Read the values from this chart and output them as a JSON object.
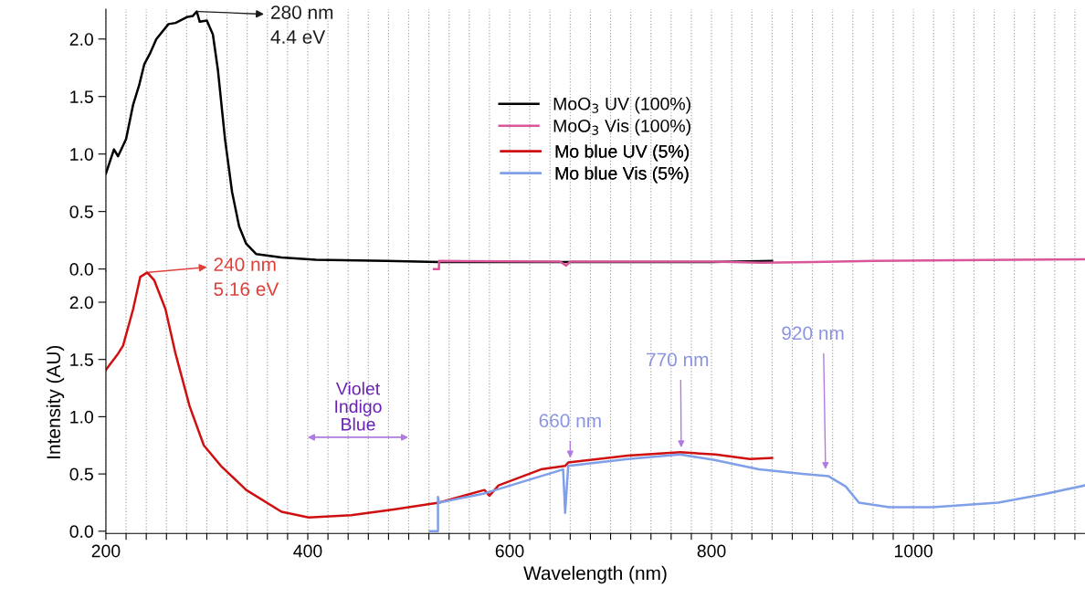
{
  "chart_data": [
    {
      "type": "line",
      "xlim": [
        200,
        1170
      ],
      "ylim": [
        -0.02,
        2.26
      ],
      "xticks": [
        200,
        {
          "value": 220,
          "label": null
        },
        {
          "value": 240,
          "label": null
        },
        {
          "value": 260,
          "label": null
        },
        {
          "value": 280,
          "label": null
        },
        {
          "value": 300,
          "label": null
        },
        {
          "value": 320,
          "label": null
        },
        {
          "value": 340,
          "label": null
        },
        {
          "value": 360,
          "label": null
        },
        {
          "value": 380,
          "label": null
        },
        400,
        {
          "value": 420,
          "label": null
        },
        {
          "value": 440,
          "label": null
        },
        {
          "value": 460,
          "label": null
        },
        {
          "value": 480,
          "label": null
        },
        {
          "value": 500,
          "label": null
        },
        {
          "value": 520,
          "label": null
        },
        {
          "value": 540,
          "label": null
        },
        {
          "value": 560,
          "label": null
        },
        {
          "value": 580,
          "label": null
        },
        600,
        {
          "value": 620,
          "label": null
        },
        {
          "value": 640,
          "label": null
        },
        {
          "value": 660,
          "label": null
        },
        {
          "value": 680,
          "label": null
        },
        {
          "value": 700,
          "label": null
        },
        {
          "value": 720,
          "label": null
        },
        {
          "value": 740,
          "label": null
        },
        {
          "value": 760,
          "label": null
        },
        {
          "value": 780,
          "label": null
        },
        800,
        {
          "value": 820,
          "label": null
        },
        {
          "value": 840,
          "label": null
        },
        {
          "value": 860,
          "label": null
        },
        {
          "value": 880,
          "label": null
        },
        {
          "value": 900,
          "label": null
        },
        {
          "value": 920,
          "label": null
        },
        {
          "value": 940,
          "label": null
        },
        {
          "value": 960,
          "label": null
        },
        {
          "value": 980,
          "label": null
        },
        1000,
        {
          "value": 1020,
          "label": null
        },
        {
          "value": 1040,
          "label": null
        },
        {
          "value": 1060,
          "label": null
        },
        {
          "value": 1080,
          "label": null
        },
        {
          "value": 1100,
          "label": null
        },
        {
          "value": 1120,
          "label": null
        },
        {
          "value": 1140,
          "label": null
        },
        {
          "value": 1160,
          "label": null
        }
      ],
      "yticks": [
        {
          "value": 0,
          "label": "0.0"
        },
        {
          "value": 0.5,
          "label": "0.5"
        },
        {
          "value": 1,
          "label": "1.0"
        },
        {
          "value": 1.5,
          "label": "1.5"
        },
        {
          "value": 2,
          "label": "2.0"
        }
      ],
      "tick_labels": "y",
      "grid": "x",
      "legend": "center",
      "series": [
        {
          "name": "MoO$_{3}$ UV (100%)",
          "color": "#000000",
          "x": [
            200,
            208,
            212,
            220,
            227,
            233,
            238,
            244,
            250,
            262,
            269,
            280,
            286,
            290,
            293,
            300,
            306,
            311,
            318,
            325,
            332,
            339,
            349,
            374,
            408,
            478,
            530,
            600,
            700,
            800,
            860
          ],
          "values": [
            0.83,
            1.04,
            0.98,
            1.13,
            1.43,
            1.6,
            1.78,
            1.88,
            2.0,
            2.13,
            2.14,
            2.19,
            2.2,
            2.24,
            2.15,
            2.16,
            2.04,
            1.73,
            1.13,
            0.67,
            0.37,
            0.22,
            0.13,
            0.1,
            0.08,
            0.07,
            0.06,
            0.06,
            0.06,
            0.06,
            0.07
          ]
        },
        {
          "name": "MoO$_{3}$ Vis (100%)",
          "color": "#d9569a",
          "x": [
            525,
            530,
            530,
            650,
            656,
            660,
            800,
            850,
            900,
            960,
            1100,
            1170
          ],
          "values": [
            0.0,
            0.0,
            0.07,
            0.065,
            0.03,
            0.065,
            0.065,
            0.055,
            0.06,
            0.07,
            0.08,
            0.085
          ]
        }
      ],
      "annotations": [
        {
          "text": "280 nm\n4.4 eV",
          "x": 290,
          "y": 2.24
        }
      ]
    },
    {
      "type": "line",
      "xlim": [
        200,
        1170
      ],
      "ylim": [
        -0.02,
        2.27
      ],
      "xticks": [
        200,
        {
          "value": 220,
          "label": null
        },
        {
          "value": 240,
          "label": null
        },
        {
          "value": 260,
          "label": null
        },
        {
          "value": 280,
          "label": null
        },
        {
          "value": 300,
          "label": null
        },
        {
          "value": 320,
          "label": null
        },
        {
          "value": 340,
          "label": null
        },
        {
          "value": 360,
          "label": null
        },
        {
          "value": 380,
          "label": null
        },
        400,
        {
          "value": 420,
          "label": null
        },
        {
          "value": 440,
          "label": null
        },
        {
          "value": 460,
          "label": null
        },
        {
          "value": 480,
          "label": null
        },
        {
          "value": 500,
          "label": null
        },
        {
          "value": 520,
          "label": null
        },
        {
          "value": 540,
          "label": null
        },
        {
          "value": 560,
          "label": null
        },
        {
          "value": 580,
          "label": null
        },
        600,
        {
          "value": 620,
          "label": null
        },
        {
          "value": 640,
          "label": null
        },
        {
          "value": 660,
          "label": null
        },
        {
          "value": 680,
          "label": null
        },
        {
          "value": 700,
          "label": null
        },
        {
          "value": 720,
          "label": null
        },
        {
          "value": 740,
          "label": null
        },
        {
          "value": 760,
          "label": null
        },
        {
          "value": 780,
          "label": null
        },
        800,
        {
          "value": 820,
          "label": null
        },
        {
          "value": 840,
          "label": null
        },
        {
          "value": 860,
          "label": null
        },
        {
          "value": 880,
          "label": null
        },
        {
          "value": 900,
          "label": null
        },
        {
          "value": 920,
          "label": null
        },
        {
          "value": 940,
          "label": null
        },
        {
          "value": 960,
          "label": null
        },
        {
          "value": 980,
          "label": null
        },
        1000,
        {
          "value": 1020,
          "label": null
        },
        {
          "value": 1040,
          "label": null
        },
        {
          "value": 1060,
          "label": null
        },
        {
          "value": 1080,
          "label": null
        },
        {
          "value": 1100,
          "label": null
        },
        {
          "value": 1120,
          "label": null
        },
        {
          "value": 1140,
          "label": null
        },
        {
          "value": 1160,
          "label": null
        }
      ],
      "yticks": [
        {
          "value": 0,
          "label": "0.0"
        },
        {
          "value": 0.5,
          "label": "0.5"
        },
        {
          "value": 1,
          "label": "1.0"
        },
        {
          "value": 1.5,
          "label": "1.5"
        },
        {
          "value": 2,
          "label": "2.0"
        }
      ],
      "grid": "x",
      "legend": "top",
      "xlabel": "Wavelength (nm)",
      "ylabel": "Intensity (AU)",
      "series": [
        {
          "name": "Mo blue UV (5%)",
          "color": "#d01010",
          "x": [
            200,
            212,
            217,
            227,
            234,
            241,
            248,
            259,
            269,
            283,
            297,
            314,
            339,
            374,
            401,
            443,
            485,
            530,
            575,
            580,
            589,
            631,
            655,
            658,
            717,
            769,
            804,
            838,
            860
          ],
          "values": [
            1.41,
            1.55,
            1.62,
            1.94,
            2.22,
            2.26,
            2.19,
            1.94,
            1.55,
            1.09,
            0.75,
            0.57,
            0.36,
            0.17,
            0.12,
            0.14,
            0.19,
            0.25,
            0.36,
            0.31,
            0.4,
            0.54,
            0.57,
            0.6,
            0.66,
            0.69,
            0.67,
            0.63,
            0.64
          ]
        },
        {
          "name": "Mo blue Vis (5%)",
          "color": "#7f9fe8",
          "x": [
            521,
            529,
            529,
            530,
            575,
            601,
            653,
            655,
            658,
            717,
            769,
            804,
            847,
            890,
            916,
            933,
            946,
            976,
            1019,
            1084,
            1127,
            1170
          ],
          "values": [
            0.0,
            0.0,
            0.3,
            0.25,
            0.33,
            0.4,
            0.54,
            0.16,
            0.57,
            0.63,
            0.67,
            0.62,
            0.54,
            0.5,
            0.48,
            0.39,
            0.25,
            0.21,
            0.21,
            0.25,
            0.32,
            0.4
          ]
        }
      ],
      "annotations": [
        {
          "text": "240 nm\n5.16 eV",
          "x": 241,
          "y": 2.26
        },
        {
          "text": "660 nm",
          "x": 660,
          "y": 0.63
        },
        {
          "text": "770 nm",
          "x": 770,
          "y": 0.72
        },
        {
          "text": "920 nm",
          "x": 913,
          "y": 0.53
        },
        "Violet\nIndigo\nBlue"
      ]
    }
  ]
}
